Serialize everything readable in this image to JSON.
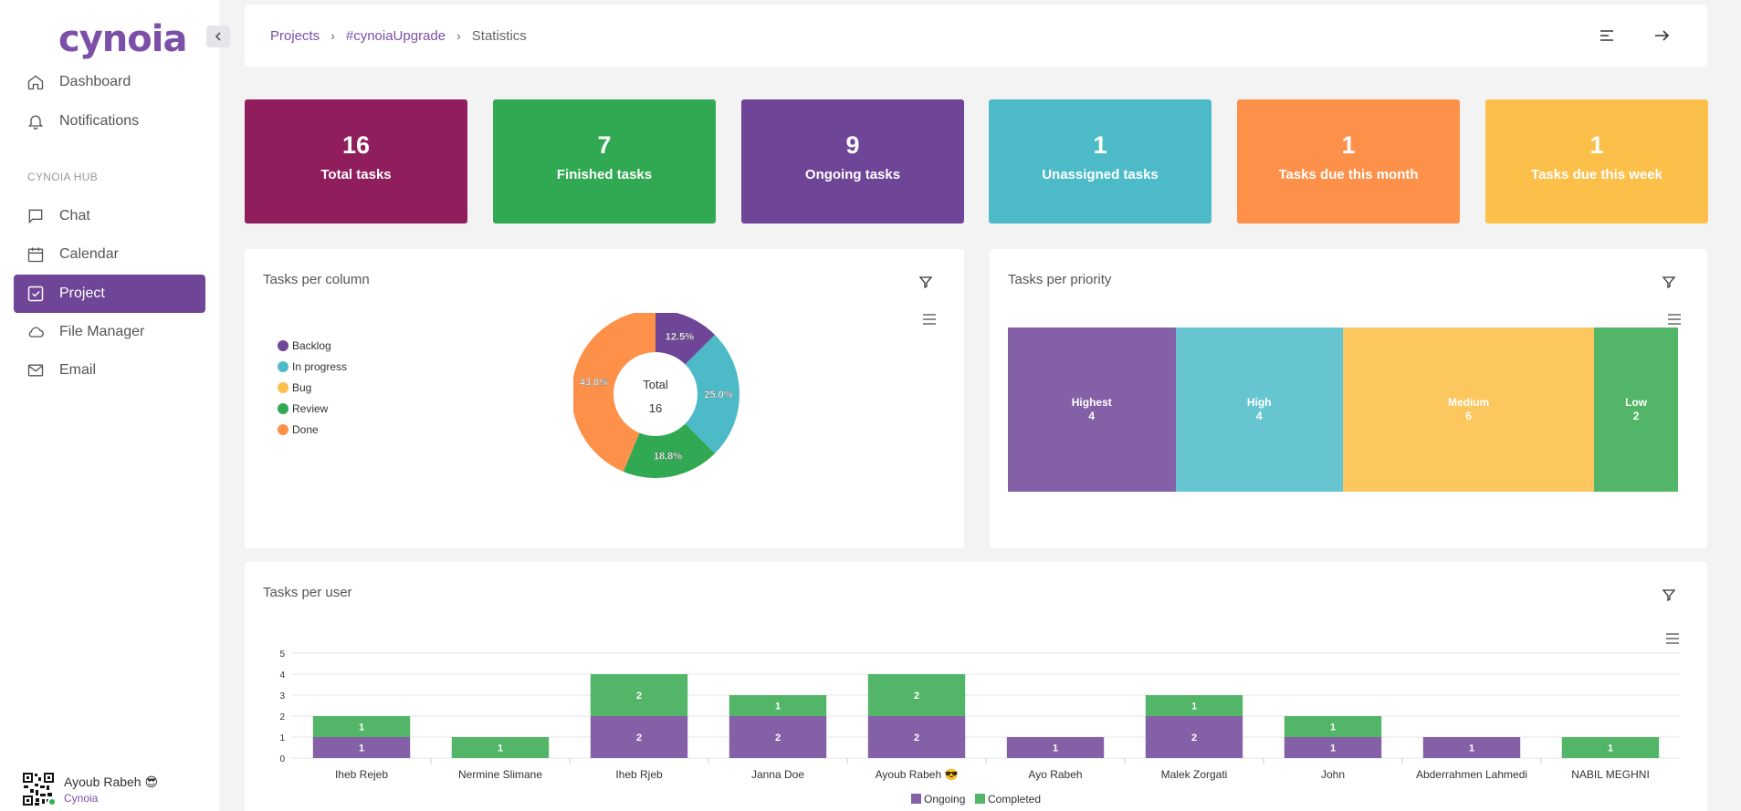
{
  "app": {
    "logo_text": "cynoia"
  },
  "sidebar": {
    "items_top": [
      {
        "label": "Dashboard",
        "icon": "home-icon"
      },
      {
        "label": "Notifications",
        "icon": "bell-icon"
      }
    ],
    "section_title": "CYNOIA HUB",
    "items_hub": [
      {
        "label": "Chat",
        "icon": "chat-icon"
      },
      {
        "label": "Calendar",
        "icon": "calendar-icon"
      },
      {
        "label": "Project",
        "icon": "checkbox-icon",
        "active": true
      },
      {
        "label": "File Manager",
        "icon": "cloud-icon"
      },
      {
        "label": "Email",
        "icon": "mail-icon"
      }
    ],
    "user": {
      "name": "Ayoub Rabeh 😎",
      "org": "Cynoia"
    }
  },
  "breadcrumb": [
    "Projects",
    "#cynoiaUpgrade",
    "Statistics"
  ],
  "stats": [
    {
      "value": "16",
      "label": "Total tasks",
      "color": "#911e5c"
    },
    {
      "value": "7",
      "label": "Finished tasks",
      "color": "#31a852"
    },
    {
      "value": "9",
      "label": "Ongoing tasks",
      "color": "#6f4597"
    },
    {
      "value": "1",
      "label": "Unassigned tasks",
      "color": "#4dbbc7"
    },
    {
      "value": "1",
      "label": "Tasks due this month",
      "color": "#fe914a"
    },
    {
      "value": "1",
      "label": "Tasks due this week",
      "color": "#fcbf4a"
    }
  ],
  "panels": {
    "column": {
      "title": "Tasks per column"
    },
    "priority": {
      "title": "Tasks per priority"
    },
    "user": {
      "title": "Tasks per user"
    }
  },
  "chart_data": [
    {
      "type": "pie",
      "title": "Tasks per column",
      "center_label": "Total",
      "center_value": "16",
      "slices": [
        {
          "name": "Backlog",
          "value": 2,
          "pct_label": "12.5%",
          "color": "#6f4597"
        },
        {
          "name": "In progress",
          "value": 4,
          "pct_label": "25.0%",
          "color": "#4dbbc7"
        },
        {
          "name": "Bug",
          "value": 0,
          "pct_label": "",
          "color": "#fcbf4a"
        },
        {
          "name": "Review",
          "value": 3,
          "pct_label": "18.8%",
          "color": "#31a852"
        },
        {
          "name": "Done",
          "value": 7,
          "pct_label": "43.8%",
          "color": "#fe914a"
        }
      ]
    },
    {
      "type": "treemap",
      "title": "Tasks per priority",
      "items": [
        {
          "name": "Highest",
          "value": 4,
          "color": "#8460a6"
        },
        {
          "name": "High",
          "value": 4,
          "color": "#66c5d0"
        },
        {
          "name": "Medium",
          "value": 6,
          "color": "#fcc75f"
        },
        {
          "name": "Low",
          "value": 2,
          "color": "#52b568"
        }
      ]
    },
    {
      "type": "bar",
      "title": "Tasks per user",
      "stacked": true,
      "categories": [
        "Iheb Rejeb",
        "Nermine Slimane",
        "Iheb Rjeb",
        "Janna Doe",
        "Ayoub Rabeh 😎",
        "Ayo Rabeh",
        "Malek Zorgati",
        "John",
        "Abderrahmen Lahmedi",
        "NABIL MEGHNI"
      ],
      "series": [
        {
          "name": "Ongoing",
          "color": "#8460a6",
          "values": [
            1,
            0,
            2,
            2,
            2,
            1,
            2,
            1,
            1,
            0
          ]
        },
        {
          "name": "Completed",
          "color": "#52b568",
          "values": [
            1,
            1,
            2,
            1,
            2,
            0,
            1,
            1,
            0,
            1
          ]
        }
      ],
      "yticks": [
        "0",
        "1",
        "2",
        "3",
        "4",
        "5"
      ],
      "ylim": [
        0,
        5
      ]
    }
  ]
}
